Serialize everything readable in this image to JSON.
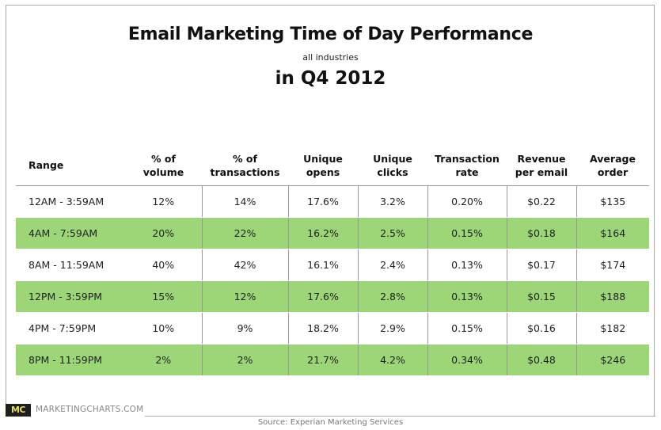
{
  "chart_data": {
    "type": "table",
    "title": "Email Marketing Time of Day Performance",
    "subtitle": "all industries",
    "title_line2": "in Q4 2012",
    "columns": [
      "Range",
      "% of volume",
      "% of transactions",
      "Unique opens",
      "Unique clicks",
      "Transaction rate",
      "Revenue per email",
      "Average order"
    ],
    "header_lines": [
      [
        "Range"
      ],
      [
        "% of",
        "volume"
      ],
      [
        "% of",
        "transactions"
      ],
      [
        "Unique",
        "opens"
      ],
      [
        "Unique",
        "clicks"
      ],
      [
        "Transaction",
        "rate"
      ],
      [
        "Revenue",
        "per email"
      ],
      [
        "Average",
        "order"
      ]
    ],
    "rows": [
      [
        "12AM - 3:59AM",
        "12%",
        "14%",
        "17.6%",
        "3.2%",
        "0.20%",
        "$0.22",
        "$135"
      ],
      [
        "4AM - 7:59AM",
        "20%",
        "22%",
        "16.2%",
        "2.5%",
        "0.15%",
        "$0.18",
        "$164"
      ],
      [
        "8AM - 11:59AM",
        "40%",
        "42%",
        "16.1%",
        "2.4%",
        "0.13%",
        "$0.17",
        "$174"
      ],
      [
        "12PM - 3:59PM",
        "15%",
        "12%",
        "17.6%",
        "2.8%",
        "0.13%",
        "$0.15",
        "$188"
      ],
      [
        "4PM - 7:59PM",
        "10%",
        "9%",
        "18.2%",
        "2.9%",
        "0.15%",
        "$0.16",
        "$182"
      ],
      [
        "8PM - 11:59PM",
        "2%",
        "2%",
        "21.7%",
        "4.2%",
        "0.34%",
        "$0.48",
        "$246"
      ]
    ],
    "highlight_color": "#9dd677"
  },
  "branding": {
    "logo_text": "MC",
    "site": "MARKETINGCHARTS.COM",
    "source": "Source: Experian Marketing Services"
  }
}
